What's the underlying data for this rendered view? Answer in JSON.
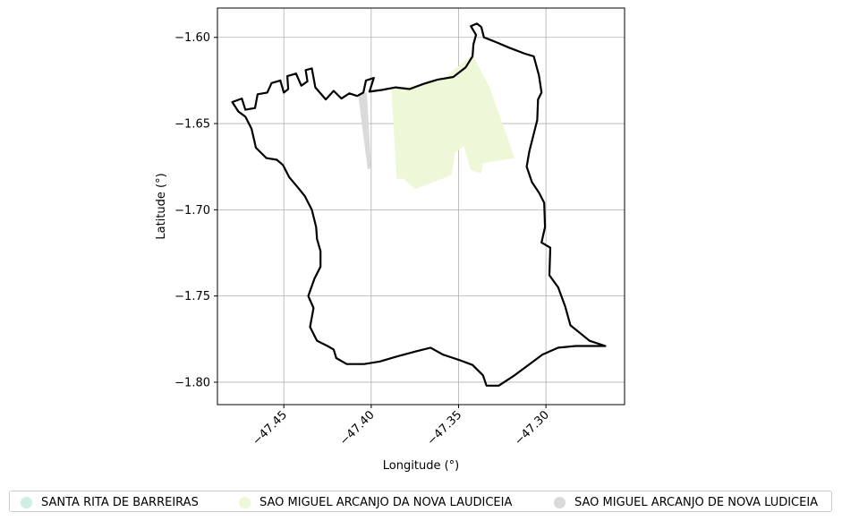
{
  "chart_data": {
    "type": "map",
    "xlabel": "Longitude (°)",
    "ylabel": "Latitude (°)",
    "xlim": [
      -47.488,
      -47.255
    ],
    "ylim": [
      -1.813,
      -1.583
    ],
    "xticks": [
      -47.45,
      -47.4,
      -47.35,
      -47.3
    ],
    "xtick_labels": [
      "−47.45",
      "−47.40",
      "−47.35",
      "−47.30"
    ],
    "yticks": [
      -1.6,
      -1.65,
      -1.7,
      -1.75,
      -1.8
    ],
    "ytick_labels": [
      "−1.60",
      "−1.65",
      "−1.70",
      "−1.75",
      "−1.80"
    ],
    "grid": true,
    "boundary": {
      "color": "#000000",
      "coords": [
        [
          -47.4795,
          -1.6375
        ],
        [
          -47.474,
          -1.6355
        ],
        [
          -47.472,
          -1.642
        ],
        [
          -47.4665,
          -1.641
        ],
        [
          -47.465,
          -1.633
        ],
        [
          -47.4595,
          -1.632
        ],
        [
          -47.457,
          -1.6265
        ],
        [
          -47.452,
          -1.625
        ],
        [
          -47.45,
          -1.632
        ],
        [
          -47.4475,
          -1.63
        ],
        [
          -47.448,
          -1.6225
        ],
        [
          -47.443,
          -1.621
        ],
        [
          -47.44,
          -1.628
        ],
        [
          -47.4365,
          -1.6255
        ],
        [
          -47.4375,
          -1.619
        ],
        [
          -47.434,
          -1.618
        ],
        [
          -47.432,
          -1.629
        ],
        [
          -47.426,
          -1.636
        ],
        [
          -47.4215,
          -1.631
        ],
        [
          -47.417,
          -1.6355
        ],
        [
          -47.4125,
          -1.6325
        ],
        [
          -47.408,
          -1.634
        ],
        [
          -47.4045,
          -1.632
        ],
        [
          -47.403,
          -1.625
        ],
        [
          -47.3985,
          -1.6235
        ],
        [
          -47.401,
          -1.6315
        ],
        [
          -47.394,
          -1.6305
        ],
        [
          -47.386,
          -1.629
        ],
        [
          -47.378,
          -1.63
        ],
        [
          -47.37,
          -1.627
        ],
        [
          -47.362,
          -1.6245
        ],
        [
          -47.353,
          -1.623
        ],
        [
          -47.346,
          -1.6175
        ],
        [
          -47.342,
          -1.611
        ],
        [
          -47.3415,
          -1.604
        ],
        [
          -47.34,
          -1.5985
        ],
        [
          -47.343,
          -1.5935
        ],
        [
          -47.3395,
          -1.592
        ],
        [
          -47.337,
          -1.594
        ],
        [
          -47.3355,
          -1.6
        ],
        [
          -47.328,
          -1.603
        ],
        [
          -47.321,
          -1.606
        ],
        [
          -47.312,
          -1.6095
        ],
        [
          -47.307,
          -1.611
        ],
        [
          -47.304,
          -1.622
        ],
        [
          -47.3025,
          -1.632
        ],
        [
          -47.3045,
          -1.636
        ],
        [
          -47.305,
          -1.648
        ],
        [
          -47.3075,
          -1.658
        ],
        [
          -47.3095,
          -1.666
        ],
        [
          -47.311,
          -1.675
        ],
        [
          -47.308,
          -1.684
        ],
        [
          -47.304,
          -1.69
        ],
        [
          -47.301,
          -1.696
        ],
        [
          -47.3005,
          -1.71
        ],
        [
          -47.3025,
          -1.719
        ],
        [
          -47.2975,
          -1.722
        ],
        [
          -47.298,
          -1.738
        ],
        [
          -47.293,
          -1.745
        ],
        [
          -47.289,
          -1.756
        ],
        [
          -47.286,
          -1.767
        ],
        [
          -47.275,
          -1.776
        ],
        [
          -47.266,
          -1.779
        ],
        [
          -47.283,
          -1.779
        ],
        [
          -47.293,
          -1.78
        ],
        [
          -47.302,
          -1.784
        ],
        [
          -47.31,
          -1.79
        ],
        [
          -47.318,
          -1.796
        ],
        [
          -47.327,
          -1.802
        ],
        [
          -47.334,
          -1.802
        ],
        [
          -47.336,
          -1.796
        ],
        [
          -47.342,
          -1.79
        ],
        [
          -47.35,
          -1.787
        ],
        [
          -47.359,
          -1.784
        ],
        [
          -47.366,
          -1.78
        ],
        [
          -47.374,
          -1.782
        ],
        [
          -47.385,
          -1.785
        ],
        [
          -47.395,
          -1.788
        ],
        [
          -47.404,
          -1.7895
        ],
        [
          -47.414,
          -1.7895
        ],
        [
          -47.42,
          -1.786
        ],
        [
          -47.4215,
          -1.781
        ],
        [
          -47.425,
          -1.779
        ],
        [
          -47.431,
          -1.776
        ],
        [
          -47.435,
          -1.768
        ],
        [
          -47.433,
          -1.757
        ],
        [
          -47.436,
          -1.75
        ],
        [
          -47.4325,
          -1.74
        ],
        [
          -47.429,
          -1.733
        ],
        [
          -47.429,
          -1.724
        ],
        [
          -47.431,
          -1.717
        ],
        [
          -47.4315,
          -1.71
        ],
        [
          -47.434,
          -1.7
        ],
        [
          -47.438,
          -1.692
        ],
        [
          -47.442,
          -1.687
        ],
        [
          -47.447,
          -1.681
        ],
        [
          -47.4505,
          -1.674
        ],
        [
          -47.454,
          -1.671
        ],
        [
          -47.46,
          -1.67
        ],
        [
          -47.466,
          -1.664
        ],
        [
          -47.4685,
          -1.653
        ],
        [
          -47.472,
          -1.646
        ],
        [
          -47.476,
          -1.643
        ],
        [
          -47.4795,
          -1.6375
        ]
      ]
    },
    "regions": [
      {
        "name": "SANTA RITA DE BARREIRAS",
        "color": "#cfeee2",
        "polygons": []
      },
      {
        "name": "SAO MIGUEL ARCANJO DA NOVA LAUDICEIA",
        "color": "#eef8d8",
        "polygons": [
          [
            [
              -47.3885,
              -1.63
            ],
            [
              -47.36,
              -1.625
            ],
            [
              -47.342,
              -1.61
            ],
            [
              -47.332,
              -1.6295
            ],
            [
              -47.318,
              -1.67
            ],
            [
              -47.336,
              -1.673
            ],
            [
              -47.337,
              -1.679
            ],
            [
              -47.343,
              -1.677
            ],
            [
              -47.347,
              -1.663
            ],
            [
              -47.352,
              -1.667
            ],
            [
              -47.354,
              -1.68
            ],
            [
              -47.375,
              -1.688
            ],
            [
              -47.3815,
              -1.682
            ],
            [
              -47.3855,
              -1.682
            ],
            [
              -47.3885,
              -1.63
            ]
          ]
        ]
      },
      {
        "name": "SAO MIGUEL ARCANJO DE NOVA LUDICEIA",
        "color": "#dadada",
        "polygons": [
          [
            [
              -47.4075,
              -1.633
            ],
            [
              -47.4025,
              -1.632
            ],
            [
              -47.4,
              -1.676
            ],
            [
              -47.402,
              -1.6765
            ],
            [
              -47.4075,
              -1.633
            ]
          ]
        ]
      }
    ],
    "legend": {
      "placement": "bottom",
      "entries": [
        {
          "label": "SANTA RITA DE BARREIRAS",
          "color": "#cfeee2"
        },
        {
          "label": "SAO MIGUEL ARCANJO DA NOVA LAUDICEIA",
          "color": "#eef8d8"
        },
        {
          "label": "SAO MIGUEL ARCANJO DE NOVA LUDICEIA",
          "color": "#dadada"
        }
      ]
    }
  }
}
